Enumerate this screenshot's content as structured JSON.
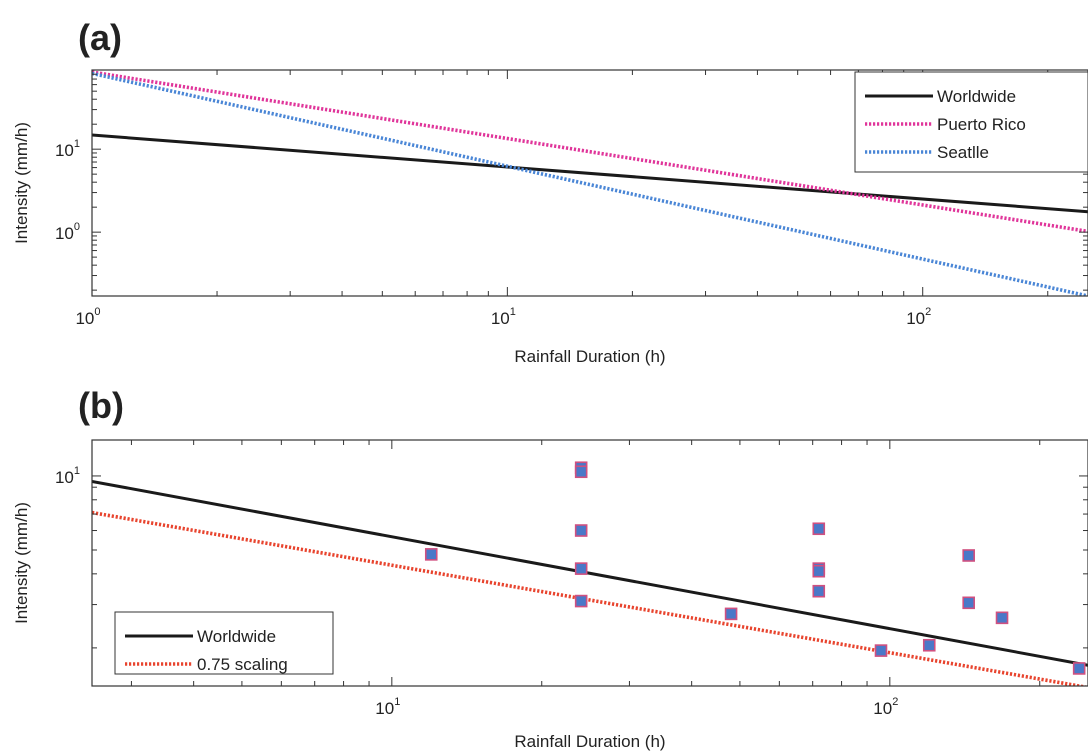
{
  "chart_data": [
    {
      "panel": "(a)",
      "type": "line",
      "xlabel": "Rainfall Duration (h)",
      "ylabel": "Intensity (mm/h)",
      "xscale": "log",
      "yscale": "log",
      "xlim": [
        1,
        250
      ],
      "ylim": [
        0.17,
        90
      ],
      "x_ticks": [
        {
          "base": "10",
          "exp": "0",
          "value": 1
        },
        {
          "base": "10",
          "exp": "1",
          "value": 10
        },
        {
          "base": "10",
          "exp": "2",
          "value": 100
        }
      ],
      "y_ticks": [
        {
          "base": "10",
          "exp": "0",
          "value": 1
        },
        {
          "base": "10",
          "exp": "1",
          "value": 10
        }
      ],
      "legend_position": "top-right",
      "series": [
        {
          "name": "Worldwide",
          "style": "solid",
          "color": "#1a1a1a",
          "x": [
            1,
            250
          ],
          "y": [
            14.82,
            1.76
          ]
        },
        {
          "name": "Puerto Rico",
          "style": "dotted",
          "color": "#e0359a",
          "x": [
            1,
            250
          ],
          "y": [
            85,
            1.02
          ]
        },
        {
          "name": "Seatlle",
          "style": "dotted",
          "color": "#4a86d6",
          "x": [
            1,
            250
          ],
          "y": [
            82,
            0.17
          ]
        }
      ]
    },
    {
      "panel": "(b)",
      "type": "scatter",
      "xlabel": "Rainfall Duration (h)",
      "ylabel": "Intensity (mm/h)",
      "xscale": "log",
      "yscale": "log",
      "xlim": [
        2.5,
        250
      ],
      "ylim": [
        1.4,
        14
      ],
      "x_ticks": [
        {
          "base": "10",
          "exp": "1",
          "value": 10
        },
        {
          "base": "10",
          "exp": "2",
          "value": 100
        }
      ],
      "y_ticks": [
        {
          "base": "10",
          "exp": "1",
          "value": 10
        }
      ],
      "legend_position": "bottom-left",
      "series": [
        {
          "name": "Worldwide",
          "style": "solid",
          "color": "#1a1a1a",
          "x": [
            2.5,
            250
          ],
          "y": [
            9.5,
            1.7
          ]
        },
        {
          "name": "0.75 scaling",
          "style": "dotted",
          "color": "#e8442e",
          "x": [
            2.5,
            250
          ],
          "y": [
            7.1,
            1.38
          ]
        }
      ],
      "points": {
        "marker": "square",
        "fill": "#4a78c8",
        "edge": "#d05080",
        "x": [
          12,
          24,
          24,
          24,
          24,
          24,
          48,
          72,
          72,
          72,
          72,
          96,
          120,
          144,
          144,
          168,
          240
        ],
        "y": [
          4.8,
          10.8,
          10.4,
          6.0,
          4.2,
          3.1,
          2.75,
          6.1,
          4.2,
          4.1,
          3.4,
          1.95,
          2.05,
          4.75,
          3.05,
          2.65,
          1.65
        ]
      }
    }
  ]
}
